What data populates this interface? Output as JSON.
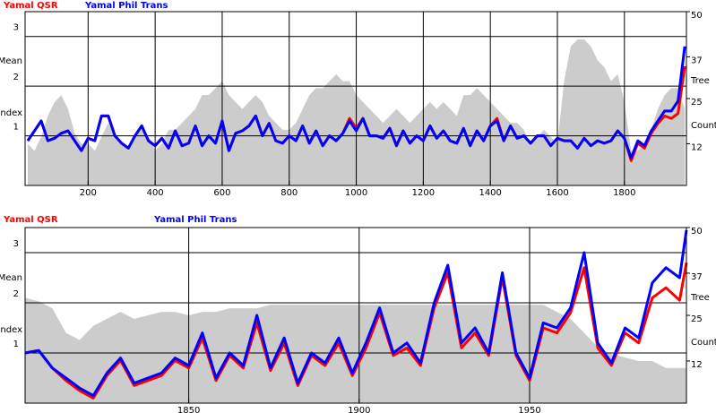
{
  "chart_data": [
    {
      "type": "line",
      "ylabel_lines": [
        "Mean",
        "Index"
      ],
      "y2label_lines": [
        "Tree",
        "Count"
      ],
      "xlim": [
        12,
        1985
      ],
      "xticks": [
        200,
        400,
        600,
        800,
        1000,
        1200,
        1400,
        1600,
        1800
      ],
      "ylim": [
        0,
        3.5
      ],
      "yticks": [
        1,
        2,
        3
      ],
      "y2lim": [
        0,
        50
      ],
      "y2ticks": [
        12,
        25,
        37,
        50
      ],
      "grid": true,
      "x": [
        20,
        40,
        60,
        80,
        100,
        120,
        140,
        160,
        180,
        200,
        220,
        240,
        260,
        280,
        300,
        320,
        340,
        360,
        380,
        400,
        420,
        440,
        460,
        480,
        500,
        520,
        540,
        560,
        580,
        600,
        620,
        640,
        660,
        680,
        700,
        720,
        740,
        760,
        780,
        800,
        820,
        840,
        860,
        880,
        900,
        920,
        940,
        960,
        980,
        1000,
        1020,
        1040,
        1060,
        1080,
        1100,
        1120,
        1140,
        1160,
        1180,
        1200,
        1220,
        1240,
        1260,
        1280,
        1300,
        1320,
        1340,
        1360,
        1380,
        1400,
        1420,
        1440,
        1460,
        1480,
        1500,
        1520,
        1540,
        1560,
        1580,
        1600,
        1620,
        1640,
        1660,
        1680,
        1700,
        1720,
        1740,
        1760,
        1780,
        1800,
        1820,
        1840,
        1860,
        1880,
        1900,
        1920,
        1940,
        1960,
        1980
      ],
      "tree_count": {
        "color": "#cccccc",
        "axis": "y2",
        "values": [
          12,
          10,
          14,
          20,
          24,
          26,
          22,
          15,
          12,
          12,
          10,
          14,
          18,
          14,
          12,
          10,
          14,
          16,
          14,
          10,
          12,
          16,
          16,
          18,
          20,
          22,
          26,
          26,
          28,
          30,
          26,
          24,
          22,
          24,
          26,
          24,
          20,
          18,
          16,
          16,
          18,
          22,
          26,
          28,
          28,
          30,
          32,
          30,
          30,
          26,
          24,
          22,
          20,
          18,
          20,
          22,
          20,
          18,
          20,
          22,
          24,
          22,
          24,
          22,
          20,
          26,
          26,
          28,
          26,
          24,
          22,
          20,
          18,
          18,
          16,
          12,
          14,
          16,
          14,
          12,
          30,
          40,
          42,
          42,
          40,
          36,
          34,
          30,
          32,
          24,
          10,
          10,
          12,
          16,
          22,
          26,
          28,
          28,
          22
        ]
      },
      "series": [
        {
          "name": "Yamal QSR",
          "color": "#ff0000",
          "values": [
            0.9,
            1.1,
            1.3,
            0.9,
            0.95,
            1.05,
            1.1,
            0.9,
            0.7,
            0.95,
            0.9,
            1.4,
            1.4,
            1.0,
            0.85,
            0.75,
            1.0,
            1.2,
            0.9,
            0.8,
            0.95,
            0.75,
            1.1,
            0.8,
            0.85,
            1.2,
            0.8,
            1.0,
            0.85,
            1.3,
            0.7,
            1.05,
            1.1,
            1.2,
            1.4,
            1.0,
            1.25,
            0.9,
            0.85,
            1.0,
            0.9,
            1.2,
            0.85,
            1.1,
            0.8,
            1.0,
            0.9,
            1.05,
            1.35,
            1.15,
            1.35,
            1.0,
            1.0,
            0.95,
            1.15,
            0.8,
            1.1,
            0.85,
            1.0,
            0.9,
            1.2,
            0.95,
            1.1,
            0.9,
            0.85,
            1.15,
            0.8,
            1.1,
            0.9,
            1.2,
            1.35,
            0.9,
            1.2,
            0.95,
            1.0,
            0.85,
            1.0,
            1.0,
            0.8,
            0.95,
            0.9,
            0.9,
            0.75,
            0.95,
            0.8,
            0.9,
            0.85,
            0.9,
            1.1,
            0.95,
            0.5,
            0.85,
            0.75,
            1.05,
            1.25,
            1.4,
            1.35,
            1.45,
            2.4
          ]
        },
        {
          "name": "Yamal Phil Trans",
          "color": "#0000ff",
          "values": [
            0.9,
            1.1,
            1.3,
            0.9,
            0.95,
            1.05,
            1.1,
            0.9,
            0.7,
            0.95,
            0.9,
            1.4,
            1.4,
            1.0,
            0.85,
            0.75,
            1.0,
            1.2,
            0.9,
            0.8,
            0.95,
            0.75,
            1.1,
            0.8,
            0.85,
            1.2,
            0.8,
            1.0,
            0.85,
            1.3,
            0.7,
            1.05,
            1.1,
            1.2,
            1.4,
            1.0,
            1.25,
            0.9,
            0.85,
            1.0,
            0.9,
            1.2,
            0.85,
            1.1,
            0.8,
            1.0,
            0.9,
            1.05,
            1.3,
            1.1,
            1.35,
            1.0,
            1.0,
            0.95,
            1.15,
            0.8,
            1.1,
            0.85,
            1.0,
            0.9,
            1.2,
            0.95,
            1.1,
            0.9,
            0.85,
            1.15,
            0.8,
            1.1,
            0.9,
            1.2,
            1.3,
            0.9,
            1.2,
            0.95,
            1.0,
            0.85,
            1.0,
            1.0,
            0.8,
            0.95,
            0.9,
            0.9,
            0.75,
            0.95,
            0.8,
            0.9,
            0.85,
            0.9,
            1.1,
            0.95,
            0.55,
            0.9,
            0.8,
            1.1,
            1.3,
            1.5,
            1.5,
            1.7,
            2.8
          ]
        }
      ]
    },
    {
      "type": "line",
      "ylabel_lines": [
        "Mean",
        "Index"
      ],
      "y2label_lines": [
        "Tree",
        "Count"
      ],
      "xlim": [
        1802,
        1996
      ],
      "xticks": [
        1850,
        1900,
        1950
      ],
      "ylim": [
        0,
        3.5
      ],
      "yticks": [
        1,
        2,
        3
      ],
      "y2lim": [
        0,
        50
      ],
      "y2ticks": [
        12,
        25,
        37,
        50
      ],
      "grid": true,
      "x": [
        1802,
        1806,
        1810,
        1814,
        1818,
        1822,
        1826,
        1830,
        1834,
        1838,
        1842,
        1846,
        1850,
        1854,
        1858,
        1862,
        1866,
        1870,
        1874,
        1878,
        1882,
        1886,
        1890,
        1894,
        1898,
        1902,
        1906,
        1910,
        1914,
        1918,
        1922,
        1926,
        1930,
        1934,
        1938,
        1942,
        1946,
        1950,
        1954,
        1958,
        1962,
        1966,
        1970,
        1974,
        1978,
        1982,
        1986,
        1990,
        1994,
        1996
      ],
      "tree_count": {
        "color": "#cccccc",
        "axis": "y2",
        "values": [
          30,
          29,
          27,
          20,
          18,
          22,
          24,
          26,
          24,
          25,
          26,
          26,
          25,
          26,
          26,
          27,
          27,
          27,
          28,
          28,
          28,
          28,
          28,
          28,
          28,
          28,
          28,
          28,
          28,
          28,
          28,
          28,
          28,
          28,
          28,
          28,
          28,
          28,
          28,
          26,
          24,
          20,
          16,
          14,
          13,
          12,
          12,
          10,
          10,
          10
        ]
      },
      "series": [
        {
          "name": "Yamal QSR",
          "color": "#ff0000",
          "values": [
            1.0,
            1.05,
            0.7,
            0.45,
            0.25,
            0.1,
            0.55,
            0.85,
            0.35,
            0.45,
            0.55,
            0.85,
            0.7,
            1.3,
            0.45,
            0.95,
            0.7,
            1.6,
            0.65,
            1.2,
            0.35,
            0.95,
            0.75,
            1.2,
            0.55,
            1.1,
            1.8,
            0.95,
            1.1,
            0.75,
            1.9,
            2.6,
            1.1,
            1.4,
            0.95,
            2.5,
            0.95,
            0.45,
            1.5,
            1.4,
            1.8,
            2.7,
            1.1,
            0.75,
            1.4,
            1.2,
            2.1,
            2.3,
            2.05,
            2.8
          ]
        },
        {
          "name": "Yamal Phil Trans",
          "color": "#0000ff",
          "values": [
            1.0,
            1.05,
            0.7,
            0.5,
            0.3,
            0.15,
            0.6,
            0.9,
            0.4,
            0.5,
            0.6,
            0.9,
            0.75,
            1.4,
            0.5,
            1.0,
            0.75,
            1.75,
            0.7,
            1.3,
            0.4,
            1.0,
            0.8,
            1.3,
            0.6,
            1.2,
            1.9,
            1.0,
            1.2,
            0.8,
            2.0,
            2.75,
            1.2,
            1.5,
            1.0,
            2.6,
            1.0,
            0.5,
            1.6,
            1.5,
            1.9,
            3.0,
            1.2,
            0.8,
            1.5,
            1.3,
            2.4,
            2.7,
            2.5,
            3.45
          ]
        }
      ]
    }
  ]
}
